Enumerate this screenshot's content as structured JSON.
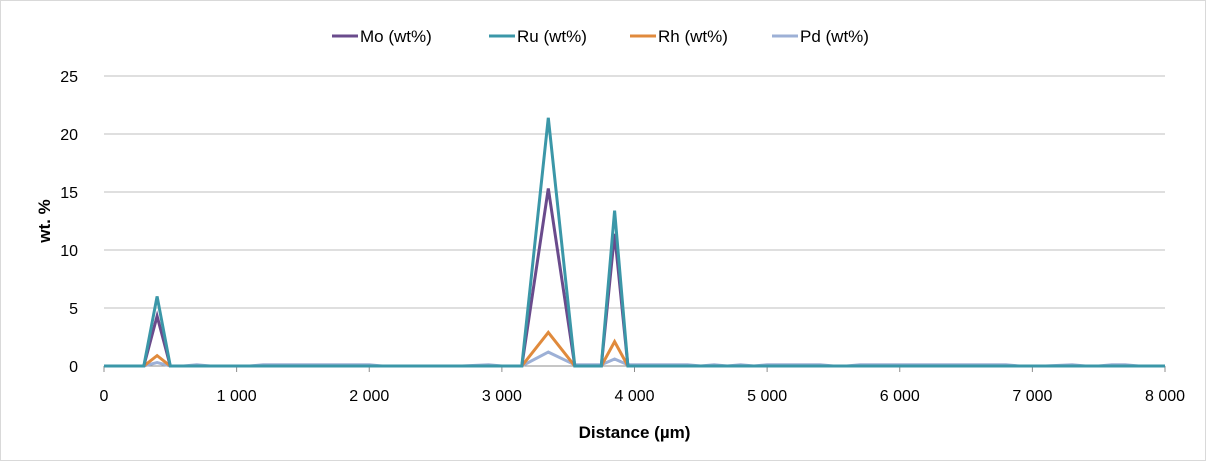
{
  "chart_data": {
    "type": "line",
    "title": "",
    "xlabel": "Distance (µm)",
    "ylabel": "wt. %",
    "xlim": [
      0,
      8000
    ],
    "ylim": [
      0,
      25
    ],
    "x_ticks": [
      0,
      1000,
      2000,
      3000,
      4000,
      5000,
      6000,
      7000,
      8000
    ],
    "x_tick_labels": [
      "0",
      "1 000",
      "2 000",
      "3 000",
      "4 000",
      "5 000",
      "6 000",
      "7 000",
      "8 000"
    ],
    "y_ticks": [
      0,
      5,
      10,
      15,
      20,
      25
    ],
    "y_tick_labels": [
      "0",
      "5",
      "10",
      "15",
      "20",
      "25"
    ],
    "grid": "horizontal",
    "legend_position": "top",
    "x": [
      0,
      100,
      200,
      300,
      400,
      500,
      600,
      700,
      800,
      900,
      1000,
      1100,
      1200,
      1300,
      1400,
      1500,
      1600,
      1700,
      1800,
      1900,
      2000,
      2100,
      2200,
      2300,
      2400,
      2500,
      2600,
      2700,
      2800,
      2900,
      3000,
      3100,
      3150,
      3350,
      3550,
      3600,
      3700,
      3750,
      3850,
      3950,
      4000,
      4100,
      4200,
      4300,
      4400,
      4500,
      4600,
      4700,
      4800,
      4900,
      5000,
      5100,
      5200,
      5300,
      5400,
      5500,
      5600,
      5700,
      5800,
      5900,
      6000,
      6100,
      6200,
      6300,
      6400,
      6500,
      6600,
      6700,
      6800,
      6900,
      7000,
      7100,
      7200,
      7300,
      7400,
      7500,
      7600,
      7700,
      7800,
      7900,
      8000
    ],
    "series": [
      {
        "name": "Mo (wt%)",
        "color": "#6a4b8c",
        "values": [
          0,
          0,
          0,
          0,
          4.3,
          0,
          0,
          0,
          0,
          0,
          0,
          0,
          0,
          0,
          0,
          0,
          0,
          0,
          0,
          0,
          0,
          0,
          0,
          0,
          0,
          0,
          0,
          0,
          0,
          0,
          0,
          0,
          0,
          15.3,
          0,
          0,
          0,
          0,
          11.4,
          0,
          0,
          0,
          0,
          0,
          0,
          0,
          0,
          0,
          0,
          0,
          0,
          0,
          0,
          0,
          0,
          0,
          0,
          0,
          0,
          0,
          0,
          0,
          0,
          0,
          0,
          0,
          0,
          0,
          0,
          0,
          0,
          0,
          0,
          0,
          0,
          0,
          0,
          0,
          0,
          0,
          0
        ]
      },
      {
        "name": "Ru (wt%)",
        "color": "#3b97a8",
        "values": [
          0,
          0,
          0,
          0,
          6.0,
          0,
          0,
          0,
          0,
          0,
          0,
          0,
          0,
          0,
          0,
          0,
          0,
          0,
          0,
          0,
          0,
          0,
          0,
          0,
          0,
          0,
          0,
          0,
          0,
          0,
          0,
          0,
          0,
          21.4,
          0,
          0,
          0,
          0,
          13.4,
          0,
          0,
          0,
          0,
          0,
          0,
          0,
          0,
          0,
          0,
          0,
          0,
          0,
          0,
          0,
          0,
          0,
          0,
          0,
          0,
          0,
          0,
          0,
          0,
          0,
          0,
          0,
          0,
          0,
          0,
          0,
          0,
          0,
          0,
          0,
          0,
          0,
          0,
          0,
          0,
          0,
          0
        ]
      },
      {
        "name": "Rh (wt%)",
        "color": "#e08a3c",
        "values": [
          0,
          0,
          0,
          0,
          0.9,
          0,
          0,
          0,
          0,
          0,
          0,
          0,
          0,
          0,
          0,
          0,
          0,
          0,
          0,
          0,
          0,
          0,
          0,
          0,
          0,
          0,
          0,
          0,
          0,
          0,
          0,
          0,
          0,
          2.9,
          0,
          0,
          0,
          0,
          2.1,
          0,
          0,
          0,
          0,
          0,
          0,
          0,
          0,
          0,
          0,
          0,
          0,
          0,
          0,
          0,
          0,
          0,
          0,
          0,
          0,
          0,
          0,
          0,
          0,
          0,
          0,
          0,
          0,
          0,
          0,
          0,
          0,
          0,
          0,
          0,
          0,
          0,
          0,
          0,
          0,
          0,
          0
        ]
      },
      {
        "name": "Pd (wt%)",
        "color": "#9db0d6",
        "values": [
          0,
          0,
          0,
          0,
          0.3,
          0,
          0,
          0.1,
          0,
          0,
          0,
          0,
          0.1,
          0.1,
          0.1,
          0.1,
          0.1,
          0.1,
          0.1,
          0.1,
          0.1,
          0,
          0,
          0,
          0,
          0,
          0,
          0,
          0.05,
          0.1,
          0,
          0,
          0,
          1.2,
          0.1,
          0.1,
          0.1,
          0.1,
          0.6,
          0.1,
          0.1,
          0.1,
          0.1,
          0.1,
          0.1,
          0,
          0.1,
          0,
          0.1,
          0,
          0.1,
          0.1,
          0.1,
          0.1,
          0.1,
          0,
          0,
          0.1,
          0.1,
          0.1,
          0.1,
          0.1,
          0.1,
          0.1,
          0.1,
          0.1,
          0.1,
          0.1,
          0.1,
          0,
          0,
          0,
          0.05,
          0.1,
          0,
          0,
          0.1,
          0.1,
          0,
          0,
          0
        ]
      }
    ]
  }
}
